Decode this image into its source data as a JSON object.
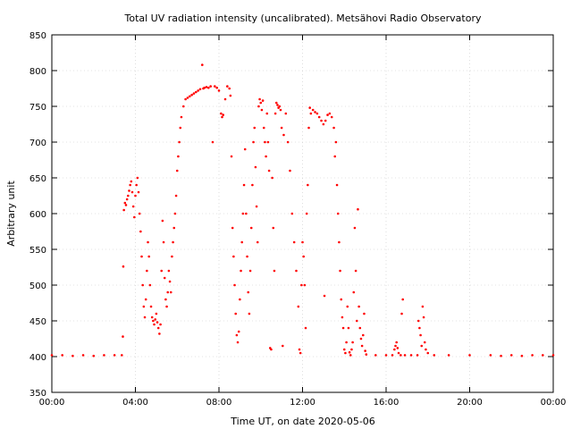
{
  "chart_data": {
    "type": "scatter",
    "title": "Total UV radiation intensity (uncalibrated). Metsähovi Radio Observatory",
    "xlabel": "Time UT, on date 2020-05-06",
    "ylabel": "Arbitrary unit",
    "xlim": [
      0,
      24
    ],
    "ylim": [
      350,
      850
    ],
    "x_ticks": [
      0,
      4,
      8,
      12,
      16,
      20,
      24
    ],
    "x_tick_labels": [
      "00:00",
      "04:00",
      "08:00",
      "12:00",
      "16:00",
      "20:00",
      "00:00"
    ],
    "y_ticks": [
      350,
      400,
      450,
      500,
      550,
      600,
      650,
      700,
      750,
      800,
      850
    ],
    "y_tick_labels": [
      "350",
      "400",
      "450",
      "500",
      "550",
      "600",
      "650",
      "700",
      "750",
      "800",
      "850"
    ],
    "grid": true,
    "marker_color": "#ff0000",
    "series": [
      {
        "x_unit": "hours UT",
        "points": [
          [
            0.0,
            402
          ],
          [
            0.5,
            402
          ],
          [
            1.0,
            401
          ],
          [
            1.5,
            402
          ],
          [
            2.0,
            401
          ],
          [
            2.5,
            402
          ],
          [
            3.0,
            402
          ],
          [
            3.35,
            402
          ],
          [
            3.4,
            428
          ],
          [
            3.42,
            526
          ],
          [
            3.45,
            605
          ],
          [
            3.5,
            615
          ],
          [
            3.55,
            612
          ],
          [
            3.6,
            620
          ],
          [
            3.65,
            625
          ],
          [
            3.7,
            632
          ],
          [
            3.75,
            640
          ],
          [
            3.8,
            645
          ],
          [
            3.85,
            630
          ],
          [
            3.9,
            610
          ],
          [
            3.95,
            595
          ],
          [
            4.0,
            625
          ],
          [
            4.05,
            640
          ],
          [
            4.1,
            650
          ],
          [
            4.15,
            630
          ],
          [
            4.2,
            600
          ],
          [
            4.25,
            575
          ],
          [
            4.3,
            540
          ],
          [
            4.35,
            500
          ],
          [
            4.4,
            470
          ],
          [
            4.45,
            455
          ],
          [
            4.5,
            480
          ],
          [
            4.55,
            520
          ],
          [
            4.6,
            560
          ],
          [
            4.65,
            540
          ],
          [
            4.7,
            500
          ],
          [
            4.75,
            470
          ],
          [
            4.8,
            455
          ],
          [
            4.85,
            450
          ],
          [
            4.9,
            445
          ],
          [
            4.95,
            452
          ],
          [
            5.0,
            460
          ],
          [
            5.05,
            448
          ],
          [
            5.1,
            440
          ],
          [
            5.15,
            432
          ],
          [
            5.2,
            445
          ],
          [
            5.25,
            520
          ],
          [
            5.3,
            590
          ],
          [
            5.35,
            560
          ],
          [
            5.4,
            510
          ],
          [
            5.45,
            480
          ],
          [
            5.5,
            470
          ],
          [
            5.55,
            490
          ],
          [
            5.6,
            520
          ],
          [
            5.65,
            505
          ],
          [
            5.7,
            490
          ],
          [
            5.75,
            540
          ],
          [
            5.8,
            560
          ],
          [
            5.85,
            580
          ],
          [
            5.9,
            600
          ],
          [
            5.95,
            625
          ],
          [
            6.0,
            660
          ],
          [
            6.05,
            680
          ],
          [
            6.1,
            700
          ],
          [
            6.15,
            720
          ],
          [
            6.2,
            735
          ],
          [
            6.3,
            750
          ],
          [
            6.4,
            760
          ],
          [
            6.5,
            762
          ],
          [
            6.6,
            764
          ],
          [
            6.7,
            766
          ],
          [
            6.8,
            768
          ],
          [
            6.9,
            770
          ],
          [
            7.0,
            772
          ],
          [
            7.1,
            774
          ],
          [
            7.2,
            808
          ],
          [
            7.25,
            775
          ],
          [
            7.3,
            776
          ],
          [
            7.4,
            777
          ],
          [
            7.5,
            776
          ],
          [
            7.6,
            778
          ],
          [
            7.7,
            700
          ],
          [
            7.8,
            778
          ],
          [
            7.9,
            776
          ],
          [
            8.0,
            772
          ],
          [
            8.1,
            740
          ],
          [
            8.15,
            735
          ],
          [
            8.2,
            738
          ],
          [
            8.3,
            760
          ],
          [
            8.4,
            778
          ],
          [
            8.5,
            775
          ],
          [
            8.55,
            765
          ],
          [
            8.6,
            680
          ],
          [
            8.65,
            580
          ],
          [
            8.7,
            540
          ],
          [
            8.75,
            500
          ],
          [
            8.8,
            460
          ],
          [
            8.85,
            430
          ],
          [
            8.9,
            420
          ],
          [
            8.95,
            435
          ],
          [
            9.0,
            480
          ],
          [
            9.05,
            520
          ],
          [
            9.1,
            560
          ],
          [
            9.15,
            600
          ],
          [
            9.2,
            640
          ],
          [
            9.25,
            690
          ],
          [
            9.3,
            600
          ],
          [
            9.35,
            540
          ],
          [
            9.4,
            490
          ],
          [
            9.45,
            460
          ],
          [
            9.5,
            520
          ],
          [
            9.55,
            580
          ],
          [
            9.6,
            640
          ],
          [
            9.65,
            700
          ],
          [
            9.7,
            720
          ],
          [
            9.75,
            665
          ],
          [
            9.8,
            610
          ],
          [
            9.85,
            560
          ],
          [
            9.9,
            750
          ],
          [
            9.95,
            760
          ],
          [
            10.0,
            755
          ],
          [
            10.05,
            745
          ],
          [
            10.1,
            758
          ],
          [
            10.15,
            720
          ],
          [
            10.2,
            700
          ],
          [
            10.25,
            680
          ],
          [
            10.3,
            740
          ],
          [
            10.35,
            700
          ],
          [
            10.4,
            660
          ],
          [
            10.45,
            412
          ],
          [
            10.5,
            410
          ],
          [
            10.55,
            650
          ],
          [
            10.6,
            580
          ],
          [
            10.65,
            520
          ],
          [
            10.7,
            740
          ],
          [
            10.75,
            755
          ],
          [
            10.8,
            752
          ],
          [
            10.85,
            748
          ],
          [
            10.9,
            750
          ],
          [
            10.95,
            745
          ],
          [
            11.0,
            720
          ],
          [
            11.05,
            415
          ],
          [
            11.1,
            710
          ],
          [
            11.2,
            740
          ],
          [
            11.3,
            700
          ],
          [
            11.4,
            660
          ],
          [
            11.5,
            600
          ],
          [
            11.6,
            560
          ],
          [
            11.7,
            520
          ],
          [
            11.8,
            470
          ],
          [
            11.85,
            410
          ],
          [
            11.9,
            405
          ],
          [
            11.95,
            500
          ],
          [
            12.0,
            560
          ],
          [
            12.05,
            540
          ],
          [
            12.1,
            500
          ],
          [
            12.15,
            440
          ],
          [
            12.2,
            600
          ],
          [
            12.25,
            640
          ],
          [
            12.3,
            720
          ],
          [
            12.35,
            748
          ],
          [
            12.4,
            740
          ],
          [
            12.5,
            745
          ],
          [
            12.6,
            742
          ],
          [
            12.7,
            740
          ],
          [
            12.8,
            735
          ],
          [
            12.9,
            730
          ],
          [
            13.0,
            725
          ],
          [
            13.05,
            485
          ],
          [
            13.1,
            730
          ],
          [
            13.2,
            738
          ],
          [
            13.3,
            740
          ],
          [
            13.4,
            735
          ],
          [
            13.5,
            720
          ],
          [
            13.55,
            680
          ],
          [
            13.6,
            700
          ],
          [
            13.65,
            640
          ],
          [
            13.7,
            600
          ],
          [
            13.75,
            560
          ],
          [
            13.8,
            520
          ],
          [
            13.85,
            480
          ],
          [
            13.9,
            455
          ],
          [
            13.95,
            440
          ],
          [
            14.0,
            410
          ],
          [
            14.05,
            405
          ],
          [
            14.1,
            420
          ],
          [
            14.15,
            470
          ],
          [
            14.2,
            440
          ],
          [
            14.25,
            406
          ],
          [
            14.3,
            402
          ],
          [
            14.35,
            410
          ],
          [
            14.4,
            420
          ],
          [
            14.45,
            490
          ],
          [
            14.5,
            580
          ],
          [
            14.55,
            520
          ],
          [
            14.6,
            450
          ],
          [
            14.65,
            606
          ],
          [
            14.7,
            470
          ],
          [
            14.75,
            440
          ],
          [
            14.8,
            425
          ],
          [
            14.85,
            415
          ],
          [
            14.9,
            430
          ],
          [
            14.95,
            460
          ],
          [
            15.0,
            408
          ],
          [
            15.05,
            403
          ],
          [
            15.5,
            402
          ],
          [
            16.0,
            402
          ],
          [
            16.3,
            402
          ],
          [
            16.4,
            410
          ],
          [
            16.45,
            415
          ],
          [
            16.5,
            420
          ],
          [
            16.55,
            412
          ],
          [
            16.6,
            405
          ],
          [
            16.7,
            402
          ],
          [
            16.75,
            460
          ],
          [
            16.8,
            480
          ],
          [
            16.9,
            402
          ],
          [
            17.2,
            402
          ],
          [
            17.5,
            402
          ],
          [
            17.55,
            450
          ],
          [
            17.6,
            440
          ],
          [
            17.65,
            430
          ],
          [
            17.7,
            415
          ],
          [
            17.75,
            470
          ],
          [
            17.8,
            455
          ],
          [
            17.85,
            420
          ],
          [
            17.9,
            410
          ],
          [
            18.0,
            405
          ],
          [
            18.3,
            402
          ],
          [
            19.0,
            402
          ],
          [
            20.0,
            402
          ],
          [
            21.0,
            402
          ],
          [
            21.5,
            401
          ],
          [
            22.0,
            402
          ],
          [
            22.5,
            401
          ],
          [
            23.0,
            402
          ],
          [
            23.5,
            402
          ],
          [
            24.0,
            402
          ]
        ]
      }
    ]
  }
}
